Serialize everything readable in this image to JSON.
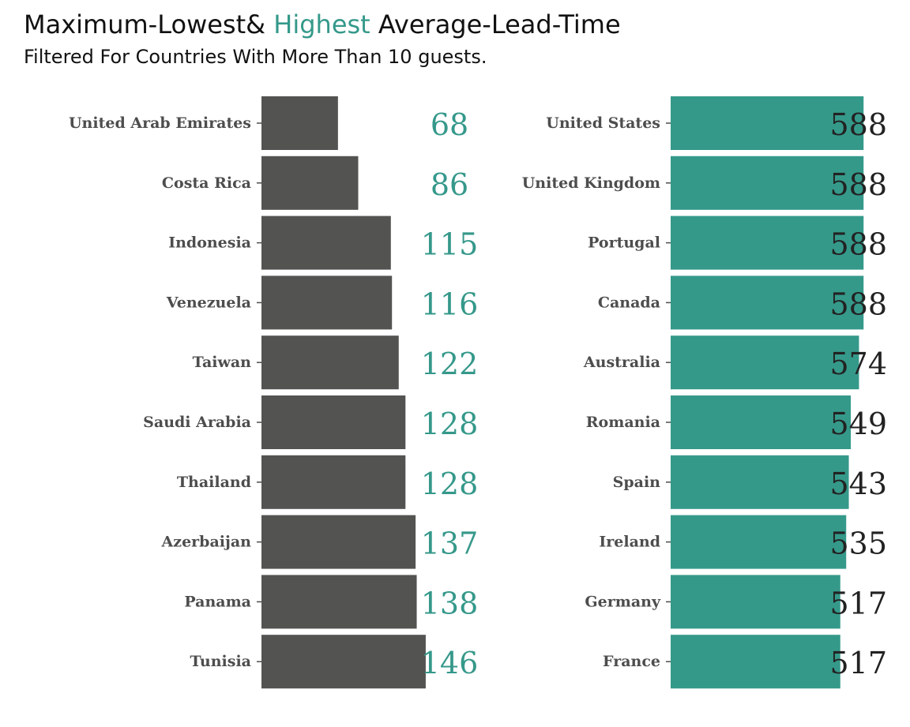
{
  "title": {
    "part1": "Maximum-Lowest& ",
    "highlight": "Highest",
    "part2": " Average-Lead-Time"
  },
  "subtitle": "Filtered For Countries With More Than 10 guests.",
  "colors": {
    "accent": "#35998a",
    "dark_bar": "#535351",
    "label": "#4d4d4d"
  },
  "chart_data": [
    {
      "type": "bar",
      "orientation": "horizontal",
      "categories": [
        "United Arab Emirates",
        "Costa Rica",
        "Indonesia",
        "Venezuela",
        "Taiwan",
        "Saudi Arabia",
        "Thailand",
        "Azerbaijan",
        "Panama",
        "Tunisia"
      ],
      "values": [
        68,
        86,
        115,
        116,
        122,
        128,
        128,
        137,
        138,
        146
      ],
      "data_labels": [
        "68",
        "86",
        "115",
        "116",
        "122",
        "128",
        "128",
        "137",
        "138",
        "146"
      ],
      "xlim": [
        0,
        165
      ],
      "bar_color": "#535351",
      "label_color": "#35998a",
      "grid": false
    },
    {
      "type": "bar",
      "orientation": "horizontal",
      "categories": [
        "United States",
        "United Kingdom",
        "Portugal",
        "Canada",
        "Australia",
        "Romania",
        "Spain",
        "Ireland",
        "Germany",
        "France"
      ],
      "values": [
        588,
        588,
        588,
        588,
        574,
        549,
        543,
        535,
        517,
        517
      ],
      "data_labels": [
        "588",
        "588",
        "588",
        "588",
        "574",
        "549",
        "543",
        "535",
        "517",
        "517"
      ],
      "xlim": [
        0,
        650
      ],
      "bar_color": "#35998a",
      "label_color": "#222222",
      "grid": false
    }
  ]
}
